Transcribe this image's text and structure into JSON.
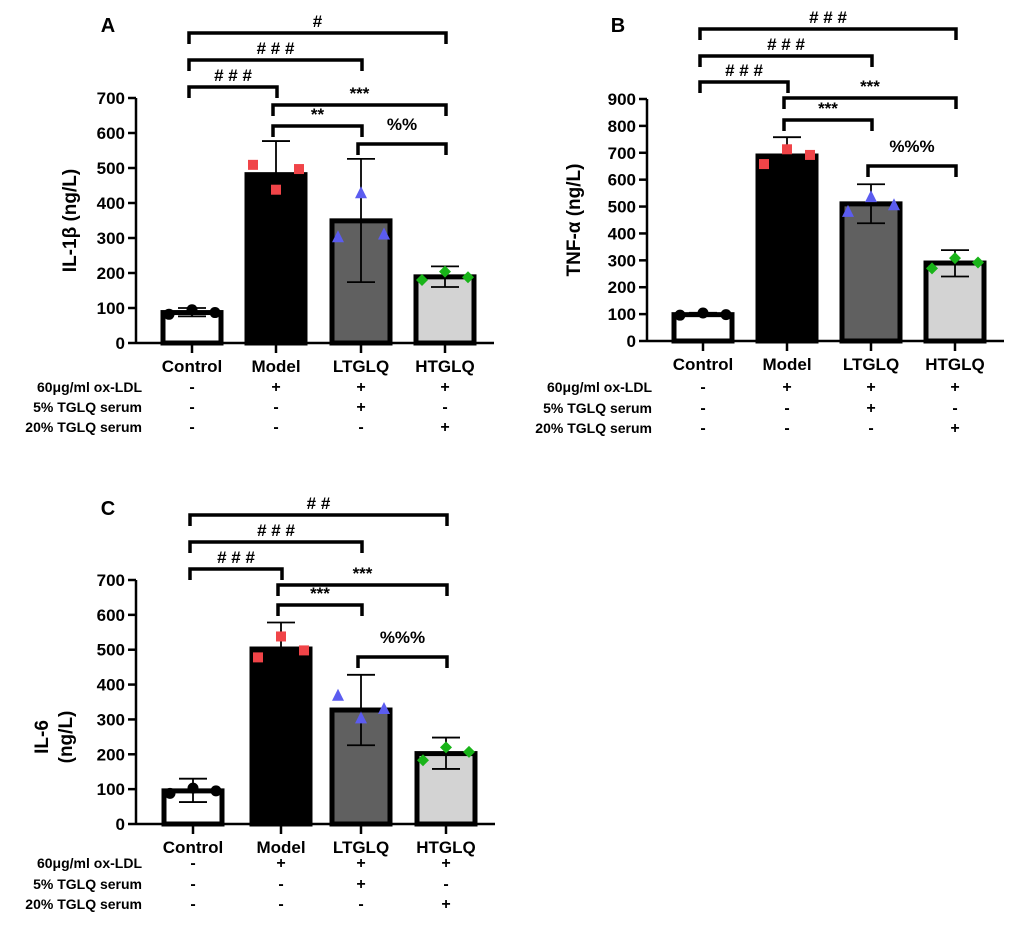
{
  "chart_data": [
    {
      "type": "bar",
      "panel_label": "A",
      "ylabel": "IL-1β (ng/L)",
      "ylim": [
        0,
        700
      ],
      "yticks": [
        "0",
        "100",
        "200",
        "300",
        "400",
        "500",
        "600",
        "700"
      ],
      "categories": [
        "Control",
        "Model",
        "LTGLQ",
        "HTGLQ"
      ],
      "values": [
        87,
        481,
        349,
        189
      ],
      "error": [
        [
          76,
          100
        ],
        [
          480,
          577
        ],
        [
          174,
          526
        ],
        [
          160,
          219
        ]
      ],
      "points": [
        [
          82,
          95,
          87
        ],
        [
          509,
          438,
          497
        ],
        [
          302,
          428,
          310
        ],
        [
          180,
          204,
          188
        ]
      ],
      "treatments": [
        {
          "label": "60μg/ml ox-LDL",
          "marks": [
            "-",
            "+",
            "+",
            "+"
          ]
        },
        {
          "label": "5% TGLQ serum",
          "marks": [
            "-",
            "-",
            "+",
            "-"
          ]
        },
        {
          "label": "20% TGLQ serum",
          "marks": [
            "-",
            "-",
            "-",
            "+"
          ]
        }
      ],
      "comparisons": [
        {
          "from": 0,
          "to": 3,
          "label": "#"
        },
        {
          "from": 0,
          "to": 2,
          "label": "# # #"
        },
        {
          "from": 0,
          "to": 1,
          "label": "# # #"
        },
        {
          "from": 1,
          "to": 3,
          "label": "***"
        },
        {
          "from": 1,
          "to": 2,
          "label": "**"
        },
        {
          "from": 2,
          "to": 3,
          "label": "%%"
        }
      ]
    },
    {
      "type": "bar",
      "panel_label": "B",
      "ylabel": "TNF-α (ng/L)",
      "ylim": [
        0,
        900
      ],
      "yticks": [
        "0",
        "100",
        "200",
        "300",
        "400",
        "500",
        "600",
        "700",
        "800",
        "900"
      ],
      "categories": [
        "Control",
        "Model",
        "LTGLQ",
        "HTGLQ"
      ],
      "values": [
        98,
        688,
        510,
        290
      ],
      "error": [
        [
          95,
          105
        ],
        [
          688,
          758
        ],
        [
          438,
          583
        ],
        [
          240,
          338
        ]
      ],
      "points": [
        [
          96,
          104,
          98
        ],
        [
          658,
          713,
          692
        ],
        [
          480,
          535,
          505
        ],
        [
          270,
          308,
          292
        ]
      ],
      "treatments": [
        {
          "label": "60μg/ml ox-LDL",
          "marks": [
            "-",
            "+",
            "+",
            "+"
          ]
        },
        {
          "label": "5% TGLQ serum",
          "marks": [
            "-",
            "-",
            "+",
            "-"
          ]
        },
        {
          "label": "20% TGLQ serum",
          "marks": [
            "-",
            "-",
            "-",
            "+"
          ]
        }
      ],
      "comparisons": [
        {
          "from": 0,
          "to": 3,
          "label": "# # #"
        },
        {
          "from": 0,
          "to": 2,
          "label": "# # #"
        },
        {
          "from": 0,
          "to": 1,
          "label": "# # #"
        },
        {
          "from": 1,
          "to": 3,
          "label": "***"
        },
        {
          "from": 1,
          "to": 2,
          "label": "***"
        },
        {
          "from": 2,
          "to": 3,
          "label": "%%%"
        }
      ]
    },
    {
      "type": "bar",
      "panel_label": "C",
      "ylabel": [
        "IL-6",
        "(ng/L)"
      ],
      "ylim": [
        0,
        700
      ],
      "yticks": [
        "0",
        "100",
        "200",
        "300",
        "400",
        "500",
        "600",
        "700"
      ],
      "categories": [
        "Control",
        "Model",
        "LTGLQ",
        "HTGLQ"
      ],
      "values": [
        95,
        502,
        327,
        202
      ],
      "error": [
        [
          63,
          130
        ],
        [
          502,
          578
        ],
        [
          226,
          428
        ],
        [
          158,
          248
        ]
      ],
      "points": [
        [
          88,
          103,
          95
        ],
        [
          478,
          538,
          498
        ],
        [
          368,
          303,
          330
        ],
        [
          183,
          220,
          207
        ]
      ],
      "treatments": [
        {
          "label": "60μg/ml ox-LDL",
          "marks": [
            "-",
            "+",
            "+",
            "+"
          ]
        },
        {
          "label": "5% TGLQ serum",
          "marks": [
            "-",
            "-",
            "+",
            "-"
          ]
        },
        {
          "label": "20% TGLQ serum",
          "marks": [
            "-",
            "-",
            "-",
            "+"
          ]
        }
      ],
      "comparisons": [
        {
          "from": 0,
          "to": 3,
          "label": "# #"
        },
        {
          "from": 0,
          "to": 2,
          "label": "# # #"
        },
        {
          "from": 0,
          "to": 1,
          "label": "# # #"
        },
        {
          "from": 1,
          "to": 3,
          "label": "***"
        },
        {
          "from": 1,
          "to": 2,
          "label": "***"
        },
        {
          "from": 2,
          "to": 3,
          "label": "%%%"
        }
      ]
    }
  ],
  "colors": {
    "bars": [
      "#ffffff",
      "#000000",
      "#606060",
      "#d3d3d3"
    ],
    "points": [
      "#000000",
      "#f04448",
      "#5b5cf0",
      "#19b419"
    ]
  }
}
